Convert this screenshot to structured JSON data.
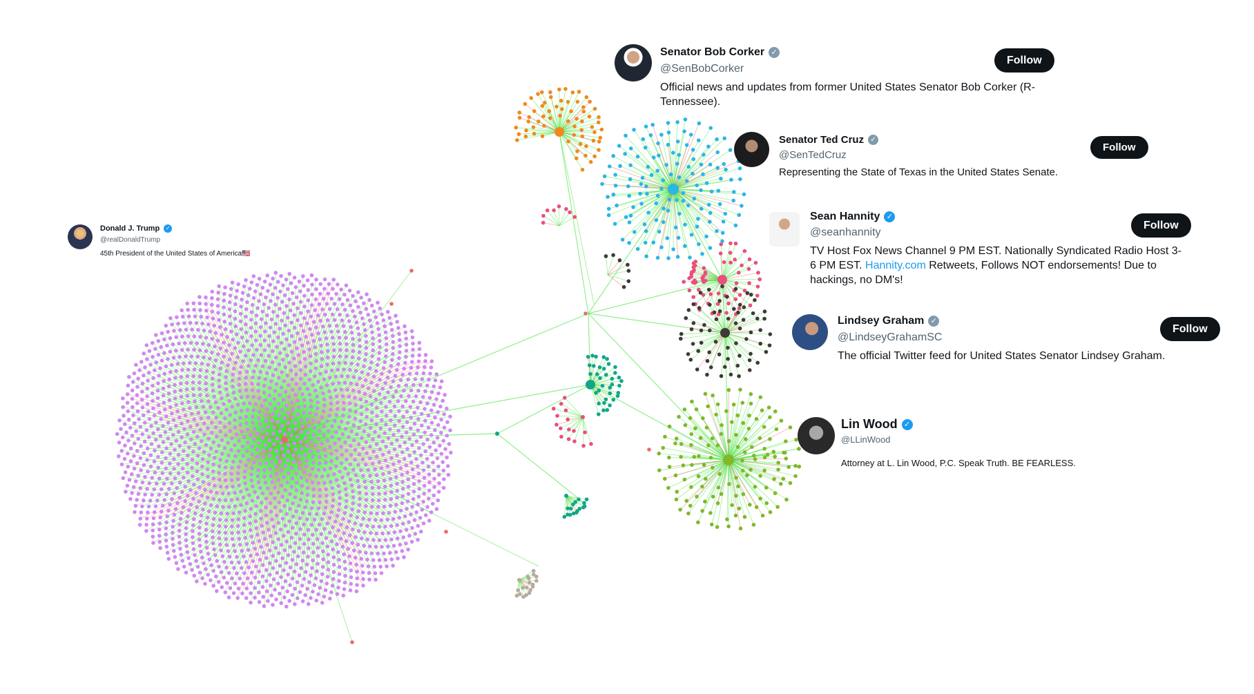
{
  "profiles": {
    "trump": {
      "name": "Donald J. Trump",
      "handle": "@realDonaldTrump",
      "bio": "45th President of the United States of America🇺🇸",
      "verified_color": "#1d9bf0"
    },
    "corker": {
      "name": "Senator Bob Corker",
      "handle": "@SenBobCorker",
      "bio": "Official news and updates from former United States Senator Bob Corker (R-Tennessee).",
      "follow_label": "Follow",
      "verified_color": "#829aab"
    },
    "cruz": {
      "name": "Senator Ted Cruz",
      "handle": "@SenTedCruz",
      "bio": "Representing the State of Texas in the United States Senate.",
      "follow_label": "Follow",
      "verified_color": "#829aab"
    },
    "hannity": {
      "name": "Sean Hannity",
      "handle": "@seanhannity",
      "bio_before_link": "TV Host Fox News Channel 9 PM EST. Nationally Syndicated Radio Host 3-6 PM EST.",
      "bio_link": "Hannity.com",
      "bio_after_link": "Retweets, Follows NOT endorsements! Due to hackings, no DM's!",
      "follow_label": "Follow",
      "verified_color": "#1d9bf0"
    },
    "graham": {
      "name": "Lindsey Graham",
      "handle": "@LindseyGrahamSC",
      "bio": "The official Twitter feed for United States Senator Lindsey Graham.",
      "follow_label": "Follow",
      "verified_color": "#829aab"
    },
    "wood": {
      "name": "Lin Wood",
      "handle": "@LLinWood",
      "bio": "Attorney at L. Lin Wood, P.C. Speak Truth. BE FEARLESS.",
      "verified_color": "#1d9bf0"
    }
  },
  "verified_mark": "✓",
  "icons": {
    "verified": "verified-badge-icon",
    "avatar": "profile-avatar"
  },
  "network_colors": {
    "trump_cluster": "#d088f0",
    "corker_cluster": "#f08a1c",
    "cruz_cluster": "#2cb5e8",
    "hannity_cluster": "#ea4f7e",
    "graham_cluster": "#3e3a36",
    "wood_cluster": "#80b82a",
    "teal_cluster": "#13a58a",
    "gray_cluster": "#b9a8a0",
    "edge_green": "#45e63c",
    "edge_red": "#e86a6a"
  }
}
